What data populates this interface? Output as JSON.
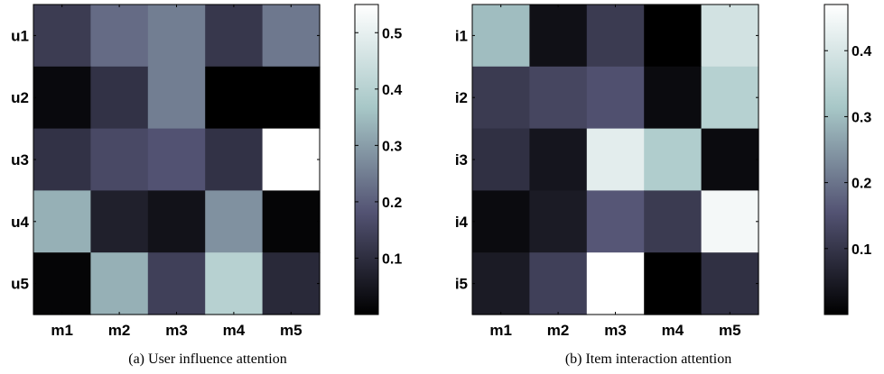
{
  "colormap": {
    "name": "bone",
    "stops": [
      "#000000",
      "#545474",
      "#a7c7c7",
      "#ffffff"
    ]
  },
  "chart_data": [
    {
      "type": "heatmap",
      "caption": "(a) User influence attention",
      "x_labels": [
        "m1",
        "m2",
        "m3",
        "m4",
        "m5"
      ],
      "y_labels": [
        "u1",
        "u2",
        "u3",
        "u4",
        "u5"
      ],
      "values": [
        [
          0.13,
          0.22,
          0.25,
          0.12,
          0.24
        ],
        [
          0.02,
          0.11,
          0.25,
          0.0,
          0.0
        ],
        [
          0.11,
          0.16,
          0.18,
          0.11,
          0.55
        ],
        [
          0.33,
          0.07,
          0.04,
          0.28,
          0.01
        ],
        [
          0.01,
          0.33,
          0.14,
          0.4,
          0.09
        ]
      ],
      "vmin": 0.0,
      "vmax": 0.55,
      "colorbar_ticks": [
        0.1,
        0.2,
        0.3,
        0.4,
        0.5
      ],
      "colorbar_labels": [
        "0.1",
        "0.2",
        "0.3",
        "0.4",
        "0.5"
      ]
    },
    {
      "type": "heatmap",
      "caption": "(b) Item interaction attention",
      "x_labels": [
        "m1",
        "m2",
        "m3",
        "m4",
        "m5"
      ],
      "y_labels": [
        "i1",
        "i2",
        "i3",
        "i4",
        "i5"
      ],
      "values": [
        [
          0.3,
          0.03,
          0.11,
          0.0,
          0.39
        ],
        [
          0.11,
          0.13,
          0.15,
          0.02,
          0.34
        ],
        [
          0.09,
          0.04,
          0.42,
          0.33,
          0.02
        ],
        [
          0.02,
          0.05,
          0.16,
          0.11,
          0.45
        ],
        [
          0.05,
          0.12,
          0.47,
          0.0,
          0.09
        ]
      ],
      "vmin": 0.0,
      "vmax": 0.47,
      "colorbar_ticks": [
        0.1,
        0.2,
        0.3,
        0.4
      ],
      "colorbar_labels": [
        "0.1",
        "0.2",
        "0.3",
        "0.4"
      ]
    }
  ]
}
